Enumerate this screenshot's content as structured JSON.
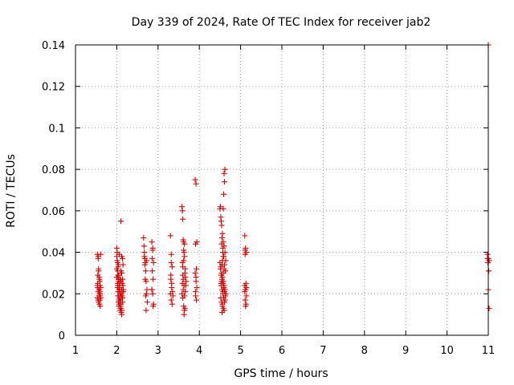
{
  "chart_data": {
    "type": "scatter",
    "title": "Day 339 of 2024, Rate Of TEC Index for receiver jab2",
    "xlabel": "GPS time / hours",
    "ylabel": "ROTI / TECUs",
    "xlim": [
      1,
      11
    ],
    "ylim": [
      0,
      0.14
    ],
    "x_ticks": [
      1,
      2,
      3,
      4,
      5,
      6,
      7,
      8,
      9,
      10,
      11
    ],
    "x_tick_labels": [
      "1",
      "2",
      "3",
      "4",
      "5",
      "6",
      "7",
      "8",
      "9",
      "10",
      "11"
    ],
    "y_ticks": [
      0,
      0.02,
      0.04,
      0.06,
      0.08,
      0.1,
      0.12,
      0.14
    ],
    "y_tick_labels": [
      "0",
      "0.02",
      "0.04",
      "0.06",
      "0.08",
      "0.1",
      "0.12",
      "0.14"
    ],
    "grid": true,
    "marker": "plus",
    "colors": {
      "series": "#e00000",
      "grid": "#a0a0a0",
      "frame": "#000000"
    },
    "series": [
      {
        "x": [
          1.53,
          1.55,
          1.57,
          1.59,
          1.61,
          1.53,
          1.55,
          1.57,
          1.59,
          1.61,
          1.54,
          1.56,
          1.58,
          1.6,
          1.54,
          1.56,
          1.58,
          1.6,
          1.55,
          1.57,
          1.59,
          1.53,
          1.56,
          1.58,
          1.6,
          1.54,
          1.57,
          1.55,
          1.59,
          1.61,
          2.0,
          2.02,
          2.04,
          2.06,
          2.08,
          2.1,
          2.12,
          2.14,
          2.16,
          2.0,
          2.02,
          2.04,
          2.06,
          2.08,
          2.1,
          2.12,
          2.14,
          2.16,
          2.01,
          2.03,
          2.05,
          2.07,
          2.09,
          2.11,
          2.13,
          2.15,
          2.01,
          2.03,
          2.05,
          2.07,
          2.09,
          2.11,
          2.13,
          2.15,
          2.0,
          2.02,
          2.04,
          2.06,
          2.08,
          2.1,
          2.12,
          2.14,
          2.01,
          2.03,
          2.05,
          2.07,
          2.09,
          2.11,
          2.13,
          2.02,
          2.04,
          2.06,
          2.08,
          2.1,
          2.12,
          2.03,
          2.05,
          2.07,
          2.09,
          2.11,
          2.1,
          2.0,
          2.04,
          2.08,
          2.12,
          2.06,
          2.02,
          2.14,
          2.09,
          2.05,
          2.65,
          2.67,
          2.69,
          2.71,
          2.73,
          2.66,
          2.68,
          2.7,
          2.72,
          2.74,
          2.67,
          2.69,
          2.71,
          2.7,
          2.68,
          2.72,
          2.85,
          2.87,
          2.89,
          2.86,
          2.88,
          2.85,
          2.87,
          2.89,
          2.86,
          2.88,
          2.87,
          2.85,
          3.3,
          3.32,
          3.34,
          3.31,
          3.33,
          3.3,
          3.32,
          3.34,
          3.31,
          3.33,
          3.32,
          3.35,
          3.36,
          3.58,
          3.6,
          3.62,
          3.64,
          3.66,
          3.68,
          3.59,
          3.61,
          3.63,
          3.65,
          3.67,
          3.58,
          3.6,
          3.62,
          3.64,
          3.66,
          3.59,
          3.61,
          3.63,
          3.65,
          3.6,
          3.62,
          3.64,
          3.61,
          3.63,
          3.62,
          3.6,
          3.64,
          3.66,
          3.59,
          3.9,
          3.92,
          3.94,
          3.91,
          3.93,
          3.9,
          3.92,
          3.94,
          3.91,
          3.93,
          3.92,
          3.91,
          4.5,
          4.52,
          4.54,
          4.56,
          4.58,
          4.6,
          4.62,
          4.64,
          4.51,
          4.53,
          4.55,
          4.57,
          4.59,
          4.61,
          4.63,
          4.5,
          4.52,
          4.54,
          4.56,
          4.58,
          4.6,
          4.62,
          4.64,
          4.51,
          4.53,
          4.55,
          4.57,
          4.59,
          4.61,
          4.63,
          4.52,
          4.54,
          4.56,
          4.58,
          4.6,
          4.62,
          4.53,
          4.55,
          4.57,
          4.59,
          4.61,
          4.54,
          4.56,
          4.58,
          4.6,
          4.55,
          4.57,
          4.59,
          4.56,
          4.58,
          4.57,
          4.55,
          4.59,
          4.61,
          4.53,
          4.6,
          4.62,
          4.58,
          4.56,
          4.54,
          5.1,
          5.12,
          5.14,
          5.11,
          5.13,
          5.1,
          5.12,
          5.14,
          5.11,
          5.13,
          5.12,
          5.1,
          5.14,
          5.11,
          10.98,
          11.0,
          11.02,
          10.99,
          11.01,
          11.0,
          11.02,
          10.98,
          11.0
        ],
        "y": [
          0.024,
          0.021,
          0.019,
          0.026,
          0.018,
          0.039,
          0.038,
          0.022,
          0.017,
          0.023,
          0.029,
          0.031,
          0.015,
          0.02,
          0.025,
          0.016,
          0.027,
          0.019,
          0.037,
          0.022,
          0.024,
          0.018,
          0.032,
          0.02,
          0.014,
          0.023,
          0.028,
          0.017,
          0.021,
          0.039,
          0.042,
          0.035,
          0.029,
          0.025,
          0.02,
          0.015,
          0.012,
          0.018,
          0.022,
          0.038,
          0.031,
          0.027,
          0.022,
          0.017,
          0.013,
          0.01,
          0.016,
          0.021,
          0.04,
          0.033,
          0.026,
          0.021,
          0.016,
          0.011,
          0.019,
          0.024,
          0.036,
          0.029,
          0.023,
          0.018,
          0.014,
          0.019,
          0.025,
          0.034,
          0.032,
          0.024,
          0.019,
          0.015,
          0.02,
          0.026,
          0.03,
          0.037,
          0.028,
          0.021,
          0.017,
          0.023,
          0.027,
          0.03,
          0.021,
          0.025,
          0.016,
          0.022,
          0.027,
          0.031,
          0.038,
          0.019,
          0.029,
          0.024,
          0.013,
          0.018,
          0.055,
          0.028,
          0.034,
          0.012,
          0.022,
          0.039,
          0.023,
          0.027,
          0.02,
          0.014,
          0.047,
          0.04,
          0.035,
          0.026,
          0.022,
          0.043,
          0.037,
          0.031,
          0.02,
          0.016,
          0.038,
          0.027,
          0.012,
          0.019,
          0.034,
          0.036,
          0.045,
          0.041,
          0.035,
          0.031,
          0.027,
          0.022,
          0.02,
          0.015,
          0.037,
          0.014,
          0.042,
          0.022,
          0.048,
          0.039,
          0.033,
          0.027,
          0.023,
          0.02,
          0.017,
          0.015,
          0.029,
          0.025,
          0.035,
          0.021,
          0.019,
          0.062,
          0.056,
          0.045,
          0.038,
          0.032,
          0.026,
          0.06,
          0.046,
          0.04,
          0.03,
          0.024,
          0.02,
          0.018,
          0.014,
          0.012,
          0.028,
          0.035,
          0.022,
          0.01,
          0.013,
          0.029,
          0.041,
          0.019,
          0.027,
          0.024,
          0.036,
          0.033,
          0.044,
          0.021,
          0.025,
          0.075,
          0.073,
          0.045,
          0.044,
          0.032,
          0.03,
          0.028,
          0.023,
          0.019,
          0.017,
          0.026,
          0.021,
          0.061,
          0.057,
          0.053,
          0.049,
          0.045,
          0.043,
          0.04,
          0.036,
          0.062,
          0.055,
          0.047,
          0.042,
          0.038,
          0.034,
          0.031,
          0.035,
          0.033,
          0.03,
          0.028,
          0.026,
          0.024,
          0.022,
          0.02,
          0.032,
          0.029,
          0.027,
          0.025,
          0.023,
          0.021,
          0.019,
          0.018,
          0.016,
          0.015,
          0.013,
          0.012,
          0.017,
          0.024,
          0.022,
          0.02,
          0.018,
          0.016,
          0.026,
          0.028,
          0.03,
          0.032,
          0.034,
          0.021,
          0.023,
          0.036,
          0.038,
          0.04,
          0.011,
          0.068,
          0.074,
          0.025,
          0.078,
          0.08,
          0.061,
          0.014,
          0.044,
          0.048,
          0.042,
          0.04,
          0.039,
          0.025,
          0.024,
          0.022,
          0.019,
          0.017,
          0.015,
          0.014,
          0.021,
          0.023,
          0.041,
          0.039,
          0.037,
          0.036,
          0.035,
          0.031,
          0.022,
          0.013,
          0.037,
          0.14
        ]
      }
    ]
  }
}
